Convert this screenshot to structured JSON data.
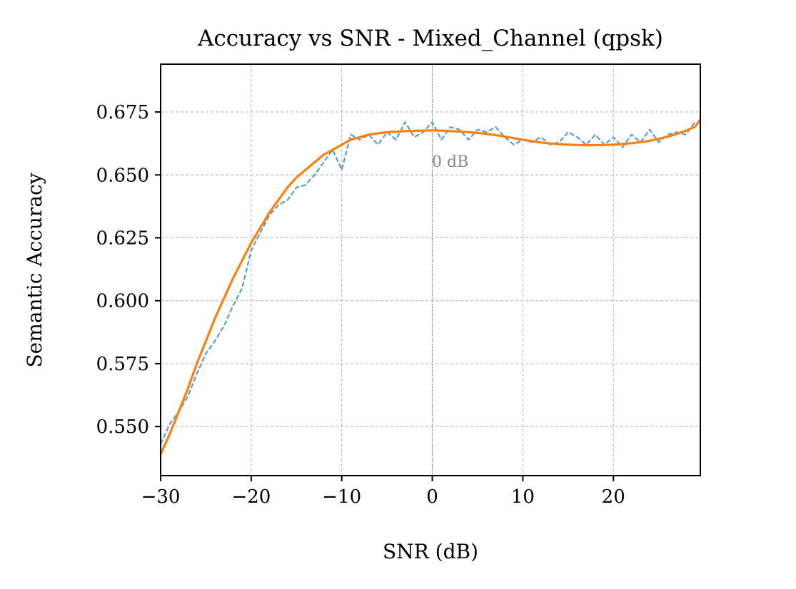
{
  "chart_data": {
    "type": "line",
    "title": "Accuracy vs SNR - Mixed_Channel (qpsk)",
    "xlabel": "SNR (dB)",
    "ylabel": "Semantic Accuracy",
    "xlim": [
      -30,
      29.6
    ],
    "ylim": [
      0.5305,
      0.694
    ],
    "xticks": [
      -30,
      -20,
      -10,
      0,
      10,
      20
    ],
    "xtick_labels": [
      "−30",
      "−20",
      "−10",
      "0",
      "10",
      "20"
    ],
    "yticks": [
      0.55,
      0.575,
      0.6,
      0.625,
      0.65,
      0.675
    ],
    "ytick_labels": [
      "0.550",
      "0.575",
      "0.600",
      "0.625",
      "0.650",
      "0.675"
    ],
    "grid": true,
    "legend": false,
    "reference_line": {
      "x": 0,
      "label": "0 dB",
      "color": "#999999"
    },
    "series": [
      {
        "style": "dashed",
        "color": "#5b9ec9",
        "x": [
          -30,
          -29,
          -28,
          -27,
          -26,
          -25,
          -24,
          -23,
          -22,
          -21,
          -20,
          -19,
          -18,
          -17,
          -16,
          -15,
          -14,
          -13,
          -12,
          -11,
          -10,
          -9,
          -8,
          -7,
          -6,
          -5,
          -4,
          -3,
          -2,
          -1,
          0,
          1,
          2,
          3,
          4,
          5,
          6,
          7,
          8,
          9,
          10,
          11,
          12,
          13,
          14,
          15,
          16,
          17,
          18,
          19,
          20,
          21,
          22,
          23,
          24,
          25,
          26,
          27,
          28,
          29
        ],
        "y": [
          0.543,
          0.551,
          0.556,
          0.562,
          0.571,
          0.579,
          0.584,
          0.59,
          0.598,
          0.605,
          0.62,
          0.627,
          0.634,
          0.638,
          0.64,
          0.645,
          0.646,
          0.65,
          0.655,
          0.66,
          0.652,
          0.666,
          0.664,
          0.666,
          0.662,
          0.667,
          0.664,
          0.671,
          0.665,
          0.667,
          0.671,
          0.664,
          0.669,
          0.668,
          0.664,
          0.668,
          0.667,
          0.669,
          0.665,
          0.662,
          0.664,
          0.663,
          0.665,
          0.662,
          0.663,
          0.667,
          0.665,
          0.662,
          0.666,
          0.662,
          0.665,
          0.661,
          0.666,
          0.663,
          0.668,
          0.663,
          0.666,
          0.667,
          0.666,
          0.671
        ]
      },
      {
        "style": "solid",
        "color": "#ff7f0e",
        "x": [
          -30,
          -29,
          -28,
          -27,
          -26,
          -25,
          -24,
          -23,
          -22,
          -21,
          -20,
          -19,
          -18,
          -17,
          -16,
          -15,
          -14,
          -13,
          -12,
          -11,
          -10,
          -9,
          -8,
          -7,
          -6,
          -5,
          -4,
          -3,
          -2,
          -1,
          0,
          1,
          2,
          3,
          4,
          5,
          6,
          7,
          8,
          9,
          10,
          11,
          12,
          13,
          14,
          15,
          16,
          17,
          18,
          19,
          20,
          21,
          22,
          23,
          24,
          25,
          26,
          27,
          28,
          29,
          29.6
        ],
        "y": [
          0.539,
          0.547,
          0.556,
          0.565,
          0.575,
          0.584,
          0.593,
          0.601,
          0.609,
          0.616,
          0.623,
          0.629,
          0.635,
          0.64,
          0.645,
          0.649,
          0.652,
          0.655,
          0.658,
          0.66,
          0.662,
          0.664,
          0.665,
          0.666,
          0.6665,
          0.667,
          0.6672,
          0.6674,
          0.6675,
          0.6676,
          0.6677,
          0.6676,
          0.6674,
          0.6672,
          0.667,
          0.6667,
          0.6663,
          0.6658,
          0.6652,
          0.6646,
          0.664,
          0.6634,
          0.6629,
          0.6625,
          0.6622,
          0.662,
          0.6619,
          0.6618,
          0.6618,
          0.6619,
          0.662,
          0.6623,
          0.6626,
          0.663,
          0.6636,
          0.6643,
          0.6652,
          0.6663,
          0.6676,
          0.6691,
          0.672
        ]
      }
    ]
  }
}
